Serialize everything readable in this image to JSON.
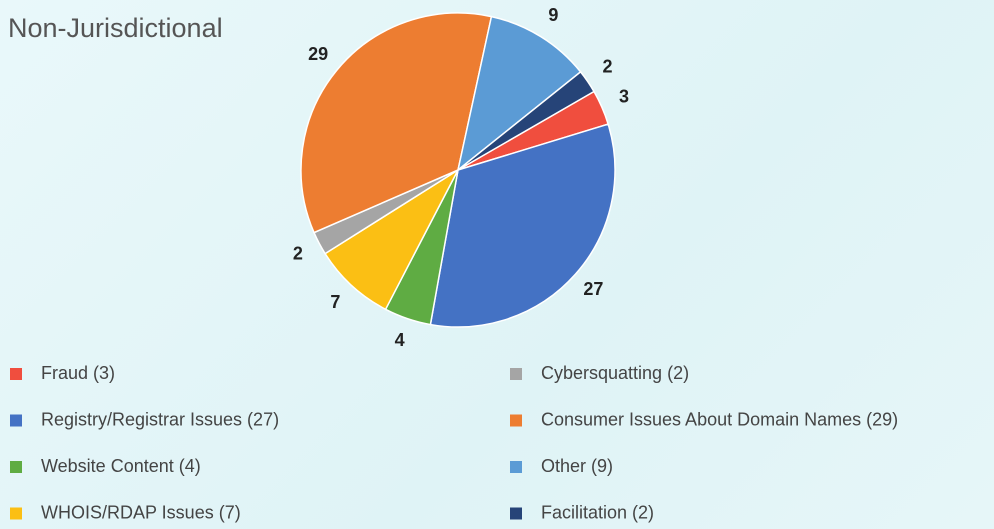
{
  "chart_data": {
    "type": "pie",
    "title": "Non-Jurisdictional",
    "categories": [
      "Fraud (3)",
      "Registry/Registrar Issues (27)",
      "Website Content (4)",
      "WHOIS/RDAP Issues (7)",
      "Cybersquatting (2)",
      "Consumer Issues About Domain Names (29)",
      "Other (9)",
      "Facilitation (2)"
    ],
    "values": [
      3,
      27,
      4,
      7,
      2,
      29,
      9,
      2
    ],
    "colors": [
      "#f04e3e",
      "#4472c4",
      "#5fac43",
      "#fbbf14",
      "#a5a5a5",
      "#ed7d31",
      "#5b9bd5",
      "#264478"
    ]
  }
}
